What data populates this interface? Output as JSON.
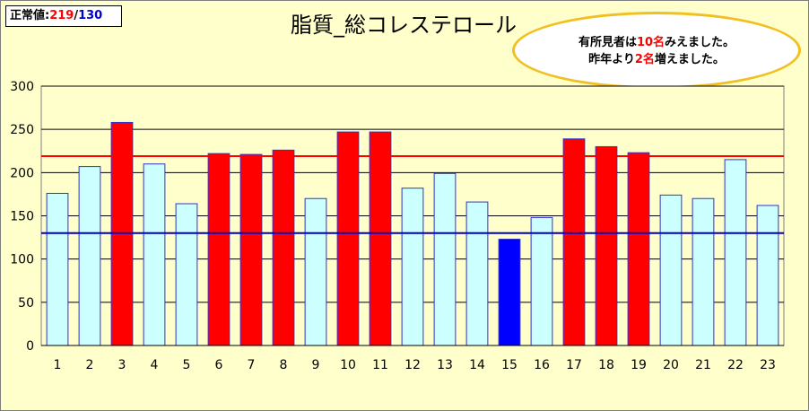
{
  "normal_value": {
    "label": "正常値:",
    "high": "219",
    "sep": "/",
    "low": "130"
  },
  "note": {
    "line1_a": "有所見者は",
    "line1_b": "10名",
    "line1_c": "みえました。",
    "line2_a": "昨年より",
    "line2_b": "2名",
    "line2_c": "増えました。"
  },
  "colors": {
    "normal_bar": "#ccffff",
    "high_bar": "#ff0000",
    "low_bar": "#0000ff",
    "high_line": "#ff0000",
    "low_line": "#0000cc",
    "bar_border": "#3333cc",
    "plot_bg": "#ffffcc"
  },
  "chart_data": {
    "type": "bar",
    "title": "脂質_総コレステロール",
    "categories": [
      "1",
      "2",
      "3",
      "4",
      "5",
      "6",
      "7",
      "8",
      "9",
      "10",
      "11",
      "12",
      "13",
      "14",
      "15",
      "16",
      "17",
      "18",
      "19",
      "20",
      "21",
      "22",
      "23"
    ],
    "values": [
      176,
      207,
      258,
      210,
      164,
      222,
      221,
      226,
      170,
      247,
      247,
      182,
      199,
      166,
      123,
      148,
      239,
      230,
      223,
      174,
      170,
      215,
      162
    ],
    "ylim": [
      0,
      300
    ],
    "yticks": [
      0,
      50,
      100,
      150,
      200,
      250,
      300
    ],
    "reference_lines": [
      {
        "value": 219,
        "color": "#ff0000"
      },
      {
        "value": 130,
        "color": "#0000cc"
      }
    ],
    "grid": true
  }
}
